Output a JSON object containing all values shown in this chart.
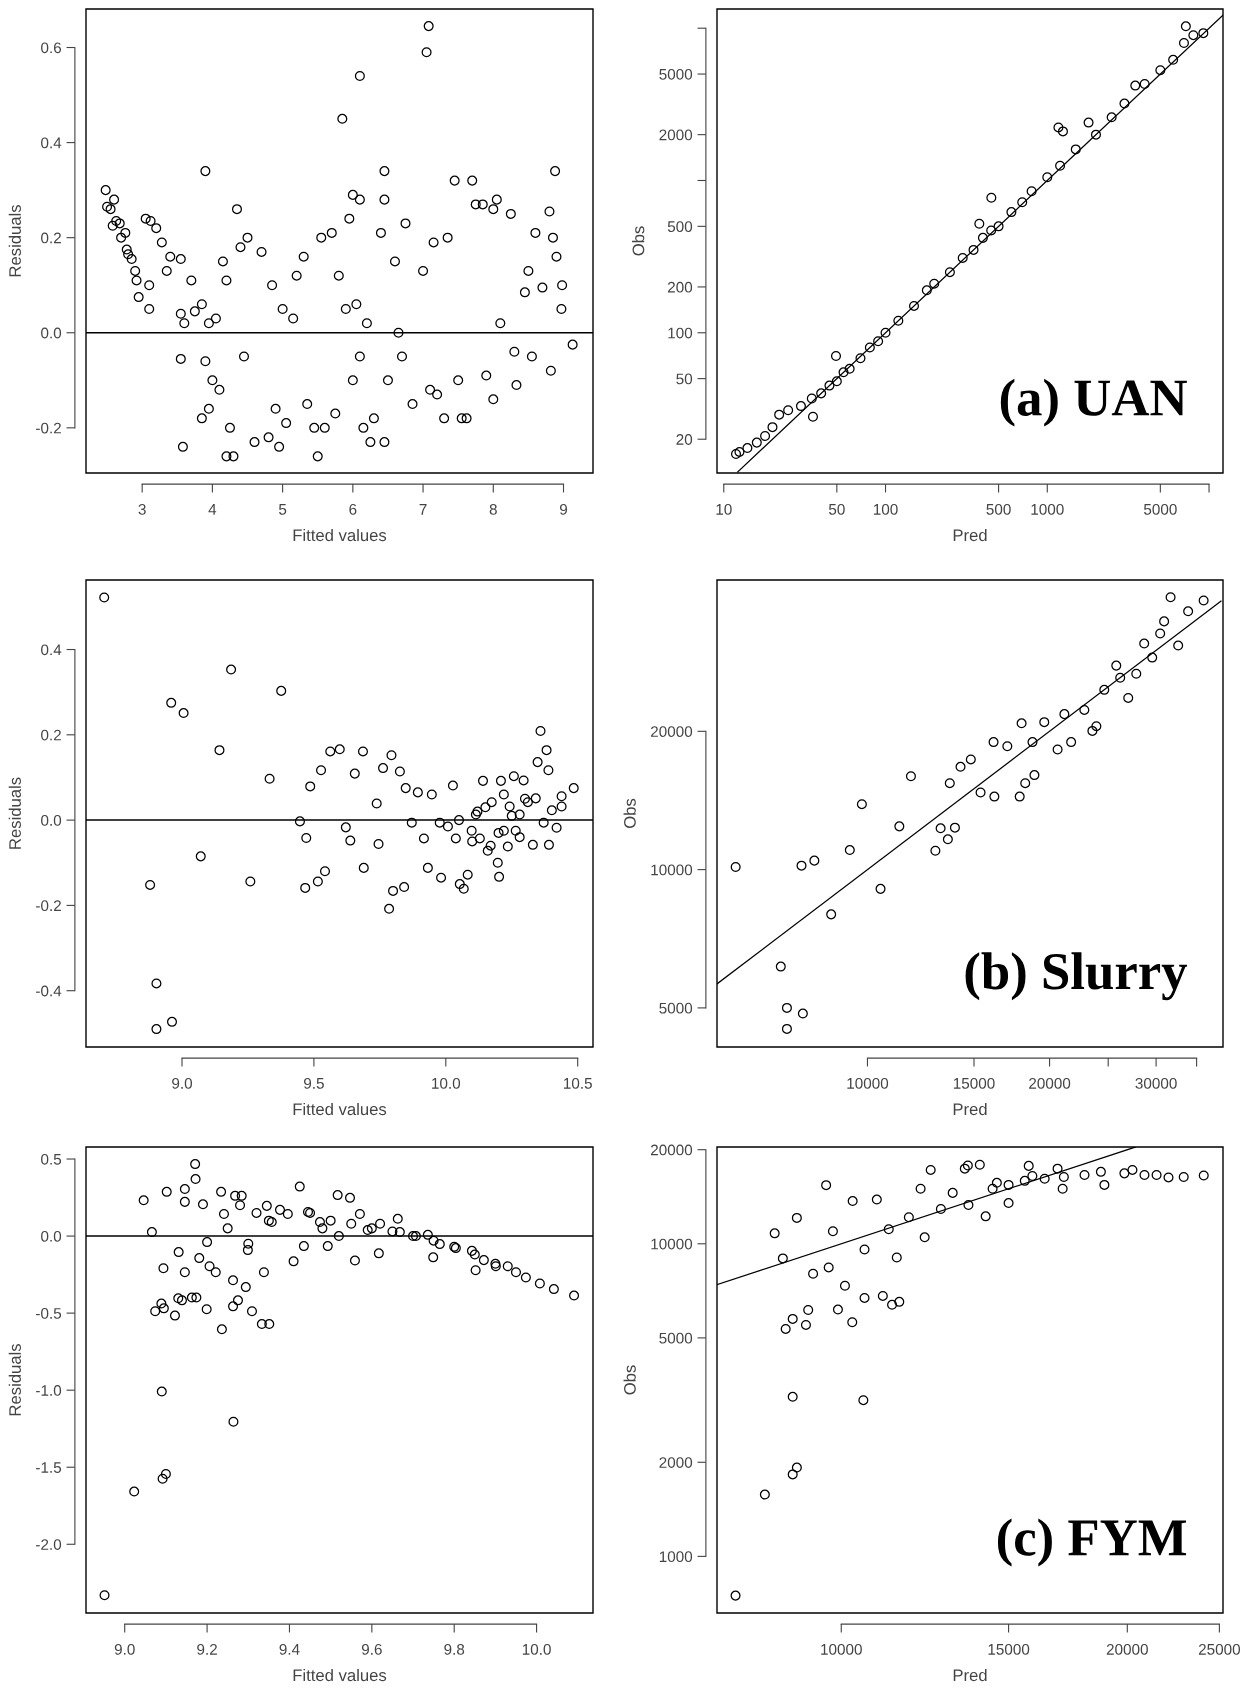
{
  "chart_data": [
    {
      "type": "scatter",
      "xlabel": "Fitted values",
      "ylabel": "Residuals",
      "xlim": [
        2.2,
        9.42
      ],
      "ylim": [
        -0.295,
        0.681
      ],
      "xticks": [
        3,
        4,
        5,
        6,
        7,
        8,
        9
      ],
      "yticks": [
        {
          "value": -0.2,
          "label": "-0.2"
        },
        {
          "value": 0.0,
          "label": "0.0"
        },
        {
          "value": 0.2,
          "label": "0.2"
        },
        {
          "value": 0.4,
          "label": "0.4"
        },
        {
          "value": 0.6,
          "label": "0.6"
        }
      ],
      "ref_lines": [
        {
          "axis": "y",
          "value": 0,
          "color": "#000000"
        }
      ],
      "series": [
        {
          "marker": "circle",
          "color": "#000000",
          "x": [
            2.48,
            2.5,
            2.55,
            2.6,
            2.58,
            2.63,
            2.68,
            2.7,
            2.76,
            2.78,
            2.8,
            2.85,
            2.9,
            2.92,
            2.95,
            3.05,
            3.12,
            3.2,
            3.28,
            3.1,
            3.1,
            3.35,
            3.4,
            3.55,
            3.55,
            3.58,
            3.55,
            3.6,
            3.7,
            3.75,
            3.85,
            3.9,
            3.9,
            3.95,
            4.0,
            4.05,
            3.85,
            3.95,
            4.1,
            4.15,
            4.2,
            4.3,
            4.25,
            4.2,
            4.35,
            4.4,
            4.5,
            4.45,
            4.6,
            4.7,
            4.8,
            4.85,
            4.9,
            4.95,
            5.0,
            5.05,
            5.15,
            5.2,
            5.3,
            5.35,
            5.45,
            5.5,
            5.55,
            5.6,
            5.7,
            5.75,
            5.85,
            5.8,
            5.9,
            5.95,
            6.0,
            6.0,
            6.05,
            6.1,
            6.1,
            6.1,
            6.15,
            6.2,
            6.25,
            6.3,
            6.4,
            6.45,
            6.45,
            6.45,
            6.5,
            6.6,
            6.65,
            6.7,
            6.75,
            6.85,
            7.0,
            7.05,
            7.08,
            7.1,
            7.15,
            7.2,
            7.3,
            7.35,
            7.45,
            7.5,
            7.55,
            7.62,
            7.7,
            7.75,
            7.85,
            7.9,
            8.0,
            8.0,
            8.05,
            8.1,
            8.25,
            8.3,
            8.33,
            8.45,
            8.5,
            8.55,
            8.6,
            8.7,
            8.8,
            8.82,
            8.85,
            8.88,
            8.9,
            8.97,
            8.98,
            9.13
          ],
          "values": [
            0.3,
            0.265,
            0.26,
            0.28,
            0.225,
            0.235,
            0.23,
            0.2,
            0.21,
            0.175,
            0.165,
            0.155,
            0.13,
            0.11,
            0.075,
            0.24,
            0.235,
            0.22,
            0.19,
            0.1,
            0.05,
            0.13,
            0.16,
            0.155,
            -0.055,
            -0.24,
            0.04,
            0.02,
            0.11,
            0.045,
            0.06,
            0.34,
            -0.06,
            0.02,
            -0.1,
            0.03,
            -0.18,
            -0.16,
            -0.12,
            0.15,
            -0.26,
            -0.26,
            -0.2,
            0.11,
            0.26,
            0.18,
            0.2,
            -0.05,
            -0.23,
            0.17,
            -0.22,
            0.1,
            -0.16,
            -0.24,
            0.05,
            -0.19,
            0.03,
            0.12,
            0.16,
            -0.15,
            -0.2,
            -0.26,
            0.2,
            -0.2,
            0.21,
            -0.17,
            0.45,
            0.12,
            0.05,
            0.24,
            0.29,
            -0.1,
            0.06,
            0.54,
            0.28,
            -0.05,
            -0.2,
            0.02,
            -0.23,
            -0.18,
            0.21,
            0.34,
            0.28,
            -0.23,
            -0.1,
            0.15,
            0.0,
            -0.05,
            0.23,
            -0.15,
            0.13,
            0.59,
            0.645,
            -0.12,
            0.19,
            -0.13,
            -0.18,
            0.2,
            0.32,
            -0.1,
            -0.18,
            -0.18,
            0.32,
            0.27,
            0.27,
            -0.09,
            0.26,
            -0.14,
            0.28,
            0.02,
            0.25,
            -0.04,
            -0.11,
            0.085,
            0.13,
            -0.05,
            0.21,
            0.095,
            0.255,
            -0.08,
            0.2,
            0.34,
            0.16,
            0.05,
            0.1,
            -0.025
          ]
        }
      ]
    },
    {
      "type": "scatter",
      "xlabel": "Pred",
      "ylabel": "Obs",
      "log": "xy",
      "xlim": [
        9.08,
        12200
      ],
      "ylim": [
        12.0,
        13370
      ],
      "xticks": [
        10,
        50,
        100,
        500,
        1000,
        5000,
        {
          "value": 10000,
          "label": null
        }
      ],
      "yticks": [
        20,
        50,
        100,
        200,
        500,
        {
          "value": 1000,
          "label": null
        },
        2000,
        5000,
        {
          "value": 10000,
          "label": null
        }
      ],
      "annotations": [
        "(a) UAN"
      ],
      "series": [
        {
          "marker": "circle",
          "color": "#000000",
          "x": [
            11.9,
            12.5,
            14,
            16,
            18,
            20,
            22,
            25,
            30,
            35,
            35.6,
            40,
            45,
            49.4,
            50,
            55,
            60,
            70,
            80,
            90,
            100,
            120,
            150,
            180,
            200,
            250,
            300,
            350,
            380,
            400,
            450,
            451,
            500,
            600,
            700,
            800,
            1000,
            1172,
            1200,
            1250,
            1500,
            1800,
            2000,
            2500,
            3000,
            3500,
            4000,
            5000,
            6000,
            7000,
            7190,
            8000,
            9220
          ],
          "values": [
            16.0,
            16.5,
            17.5,
            19,
            21,
            24,
            29,
            31,
            33,
            37,
            28.1,
            40,
            45,
            70.4,
            48,
            55,
            58,
            68,
            80,
            88,
            100,
            120,
            150,
            190,
            210,
            250,
            310,
            350,
            520,
            420,
            470,
            770,
            500,
            620,
            720,
            850,
            1050,
            2230,
            1250,
            2100,
            1600,
            2400,
            2000,
            2600,
            3200,
            4200,
            4300,
            5300,
            6200,
            8000,
            10290,
            9000,
            9280
          ]
        },
        {
          "type": "line",
          "color": "#000000",
          "x": [
            12.2,
            12200
          ],
          "values": [
            12.2,
            12200
          ]
        }
      ]
    },
    {
      "type": "scatter",
      "xlabel": "Fitted values",
      "ylabel": "Residuals",
      "xlim": [
        8.636,
        10.558
      ],
      "ylim": [
        -0.532,
        0.563
      ],
      "xticks": [
        {
          "value": 9.0,
          "label": "9.0"
        },
        {
          "value": 9.5,
          "label": "9.5"
        },
        {
          "value": 10.0,
          "label": "10.0"
        },
        {
          "value": 10.5,
          "label": "10.5"
        }
      ],
      "yticks": [
        {
          "value": -0.4,
          "label": "-0.4"
        },
        {
          "value": -0.2,
          "label": "-0.2"
        },
        {
          "value": 0.0,
          "label": "0.0"
        },
        {
          "value": 0.2,
          "label": "0.2"
        },
        {
          "value": 0.4,
          "label": "0.4"
        }
      ],
      "ref_lines": [
        {
          "axis": "y",
          "value": 0,
          "color": "#000000"
        }
      ],
      "series": [
        {
          "marker": "circle",
          "color": "#000000",
          "x": [
            8.705,
            8.879,
            8.903,
            8.903,
            8.962,
            8.959,
            9.006,
            9.071,
            9.142,
            9.186,
            9.259,
            9.332,
            9.376,
            9.447,
            9.467,
            9.471,
            9.486,
            9.527,
            9.515,
            9.542,
            9.562,
            9.598,
            9.621,
            9.638,
            9.655,
            9.686,
            9.689,
            9.738,
            9.745,
            9.762,
            9.785,
            9.794,
            9.8,
            9.842,
            9.826,
            9.848,
            9.871,
            9.894,
            9.917,
            9.932,
            9.947,
            9.977,
            9.982,
            10.008,
            10.027,
            10.038,
            10.053,
            10.068,
            10.083,
            10.098,
            10.114,
            10.129,
            10.141,
            10.159,
            10.174,
            10.197,
            10.202,
            10.209,
            10.22,
            10.235,
            10.242,
            10.258,
            10.265,
            10.28,
            10.295,
            10.311,
            10.33,
            10.341,
            10.348,
            10.359,
            10.371,
            10.382,
            10.389,
            10.402,
            10.391,
            10.42,
            10.439,
            10.439,
            10.485,
            10.05,
            10.1,
            10.15,
            10.2,
            10.25,
            10.3,
            10.17,
            10.12,
            10.22,
            10.28
          ],
          "values": [
            0.522,
            -0.152,
            -0.383,
            -0.49,
            -0.473,
            0.275,
            0.251,
            -0.085,
            0.164,
            0.353,
            -0.144,
            0.097,
            0.303,
            -0.003,
            -0.159,
            -0.042,
            0.079,
            0.117,
            -0.144,
            -0.12,
            0.161,
            0.166,
            -0.017,
            -0.048,
            0.109,
            0.161,
            -0.112,
            0.039,
            -0.056,
            0.122,
            -0.208,
            0.152,
            -0.166,
            -0.157,
            0.114,
            0.075,
            -0.006,
            0.065,
            -0.043,
            -0.112,
            0.06,
            -0.006,
            -0.135,
            -0.015,
            0.081,
            -0.043,
            -0.15,
            -0.161,
            -0.128,
            -0.025,
            0.013,
            -0.043,
            0.092,
            -0.072,
            0.042,
            -0.1,
            -0.133,
            0.092,
            -0.025,
            -0.062,
            0.032,
            0.103,
            -0.025,
            0.013,
            0.093,
            0.042,
            -0.058,
            0.051,
            0.136,
            0.209,
            -0.006,
            0.164,
            0.117,
            0.023,
            -0.058,
            -0.018,
            0.056,
            0.032,
            0.075,
            0.0,
            -0.05,
            0.03,
            -0.03,
            0.01,
            0.05,
            -0.06,
            0.02,
            0.06,
            -0.04
          ]
        }
      ]
    },
    {
      "type": "scatter",
      "xlabel": "Pred",
      "ylabel": "Obs",
      "log": "xy",
      "xlim": [
        5640,
        38700
      ],
      "ylim": [
        4110,
        42700
      ],
      "xticks": [
        10000,
        15000,
        20000,
        {
          "value": 25000,
          "label": null
        },
        30000,
        {
          "value": 35000,
          "label": null
        }
      ],
      "yticks": [
        5000,
        10000,
        20000
      ],
      "annotations": [
        "(b) Slurry"
      ],
      "series": [
        {
          "marker": "circle",
          "color": "#000000",
          "x": [
            6055,
            7190,
            7360,
            7360,
            7820,
            7780,
            8170,
            8710,
            9350,
            9790,
            10510,
            11290,
            11800,
            12950,
            13580,
            13210,
            13950,
            14250,
            13680,
            14820,
            16210,
            16160,
            17850,
            17980,
            18230,
            18880,
            21710,
            20620,
            23540,
            26980,
            25780,
            28670,
            30470,
            31700,
            35950,
            32630,
            33890,
            24630,
            22830,
            19600,
            27820,
            29560,
            30930,
            23900,
            26170,
            21160,
            17030,
            15380,
            18740
          ],
          "values": [
            10130,
            6150,
            5000,
            4500,
            4860,
            10200,
            10460,
            7990,
            11030,
            13880,
            9080,
            12420,
            15970,
            10990,
            11640,
            12300,
            12340,
            16740,
            15420,
            17370,
            14420,
            18950,
            14420,
            20820,
            15420,
            16060,
            18950,
            18260,
            20040,
            23640,
            27800,
            31050,
            32650,
            39160,
            38530,
            30740,
            36500,
            24620,
            22260,
            20940,
            26690,
            28940,
            34700,
            20520,
            26160,
            21800,
            18560,
            14720,
            18950
          ]
        },
        {
          "type": "line",
          "color": "#000000",
          "x": [
            5640,
            38400
          ],
          "values": [
            5640,
            38400
          ]
        }
      ]
    },
    {
      "type": "scatter",
      "xlabel": "Fitted values",
      "ylabel": "Residuals",
      "xlim": [
        8.906,
        10.137
      ],
      "ylim": [
        -2.446,
        0.578
      ],
      "xticks": [
        {
          "value": 9.0,
          "label": "9.0"
        },
        {
          "value": 9.2,
          "label": "9.2"
        },
        {
          "value": 9.4,
          "label": "9.4"
        },
        {
          "value": 9.6,
          "label": "9.6"
        },
        {
          "value": 9.8,
          "label": "9.8"
        },
        {
          "value": 10.0,
          "label": "10.0"
        }
      ],
      "yticks": [
        {
          "value": -2.0,
          "label": "-2.0"
        },
        {
          "value": -1.5,
          "label": "-1.5"
        },
        {
          "value": -1.0,
          "label": "-1.0"
        },
        {
          "value": -0.5,
          "label": "-0.5"
        },
        {
          "value": 0.0,
          "label": "0.0"
        },
        {
          "value": 0.5,
          "label": "0.5"
        }
      ],
      "ref_lines": [
        {
          "axis": "y",
          "value": 0,
          "color": "#000000"
        }
      ],
      "series": [
        {
          "marker": "circle",
          "color": "#000000",
          "x": [
            8.951,
            9.023,
            9.09,
            9.092,
            9.1,
            9.264,
            9.046,
            9.066,
            9.074,
            9.089,
            9.095,
            9.102,
            9.094,
            9.122,
            9.131,
            9.13,
            9.146,
            9.146,
            9.139,
            9.146,
            9.163,
            9.171,
            9.172,
            9.174,
            9.181,
            9.19,
            9.199,
            9.2,
            9.206,
            9.221,
            9.236,
            9.234,
            9.241,
            9.263,
            9.275,
            9.263,
            9.268,
            9.284,
            9.294,
            9.309,
            9.299,
            9.333,
            9.351,
            9.338,
            9.345,
            9.357,
            9.377,
            9.41,
            9.425,
            9.396,
            9.435,
            9.445,
            9.474,
            9.493,
            9.517,
            9.547,
            9.559,
            9.571,
            9.59,
            9.617,
            9.663,
            9.668,
            9.707,
            9.736,
            9.749,
            9.765,
            9.804,
            9.843,
            9.852,
            9.872,
            9.901,
            9.93,
            9.95,
            9.974,
            10.008,
            10.042,
            10.091,
            9.45,
            9.5,
            9.55,
            9.6,
            9.65,
            9.7,
            9.75,
            9.8,
            9.85,
            9.9,
            9.48,
            9.52,
            9.62,
            9.25,
            9.3,
            9.35,
            9.28,
            9.32
          ],
          "values": [
            -2.331,
            -1.658,
            -1.009,
            -1.575,
            -1.544,
            -1.205,
            0.232,
            0.026,
            -0.488,
            -0.438,
            -0.469,
            0.287,
            -0.209,
            -0.516,
            -0.104,
            -0.404,
            0.305,
            0.222,
            -0.417,
            -0.235,
            -0.399,
            0.467,
            0.37,
            -0.399,
            -0.143,
            0.206,
            -0.475,
            -0.039,
            -0.196,
            -0.235,
            -0.605,
            0.287,
            0.143,
            -0.456,
            -0.417,
            -0.287,
            0.261,
            0.261,
            -0.331,
            -0.488,
            -0.091,
            -0.571,
            -0.571,
            -0.235,
            0.196,
            0.091,
            0.17,
            -0.164,
            0.321,
            0.143,
            -0.065,
            0.156,
            0.091,
            -0.065,
            0.266,
            0.248,
            -0.159,
            0.143,
            0.039,
            -0.112,
            0.112,
            0.026,
            0.0,
            0.008,
            -0.138,
            -0.052,
            -0.078,
            -0.096,
            -0.222,
            -0.156,
            -0.196,
            -0.196,
            -0.235,
            -0.269,
            -0.308,
            -0.344,
            -0.386,
            0.15,
            0.1,
            0.08,
            0.05,
            0.03,
            0.0,
            -0.03,
            -0.07,
            -0.12,
            -0.18,
            0.05,
            0.0,
            0.08,
            0.05,
            -0.05,
            0.1,
            0.2,
            0.15
          ]
        }
      ]
    },
    {
      "type": "scatter",
      "xlabel": "Pred",
      "ylabel": "Obs",
      "log": "xy",
      "xlim": [
        7400,
        25220
      ],
      "ylim": [
        659,
        20400
      ],
      "xticks": [
        10000,
        15000,
        20000,
        25000
      ],
      "yticks": [
        1000,
        2000,
        5000,
        10000,
        20000
      ],
      "annotations": [
        "(c) FYM"
      ],
      "series": [
        {
          "marker": "circle",
          "color": "#000000",
          "x": [
            7740,
            8310,
            8890,
            8980,
            8890,
            10550,
            8510,
            8740,
            8890,
            9180,
            9230,
            9640,
            9920,
            10270,
            10580,
            11060,
            11310,
            11510,
            8680,
            8980,
            9340,
            9700,
            9800,
            10090,
            10280,
            10580,
            10900,
            11220,
            11440,
            11780,
            12120,
            12240,
            12420,
            12730,
            13100,
            13490,
            13590,
            13990,
            14190,
            13610,
            14430,
            15000,
            15000,
            15750,
            15600,
            16370,
            16890,
            17100,
            17150,
            18030,
            18920,
            18760,
            19860,
            20250,
            20850,
            21470,
            22100,
            22930,
            24070,
            14580,
            15890
          ],
          "values": [
            749,
            1577,
            1829,
            1924,
            3240,
            3160,
            10800,
            5340,
            5750,
            5500,
            6140,
            15400,
            6160,
            5610,
            6710,
            6810,
            6380,
            6520,
            8980,
            12100,
            8020,
            8400,
            10970,
            7340,
            13700,
            9590,
            13850,
            11130,
            9040,
            12160,
            15000,
            10490,
            17230,
            12920,
            14550,
            17390,
            17800,
            17900,
            12240,
            13300,
            15000,
            13500,
            15430,
            17750,
            15900,
            16150,
            17390,
            15000,
            16360,
            16600,
            15430,
            16990,
            16800,
            17230,
            16600,
            16600,
            16300,
            16360,
            16540,
            15670,
            16480
          ]
        },
        {
          "type": "line",
          "color": "#000000",
          "x": [
            7400,
            20400
          ],
          "values": [
            7400,
            20400
          ]
        }
      ]
    }
  ]
}
